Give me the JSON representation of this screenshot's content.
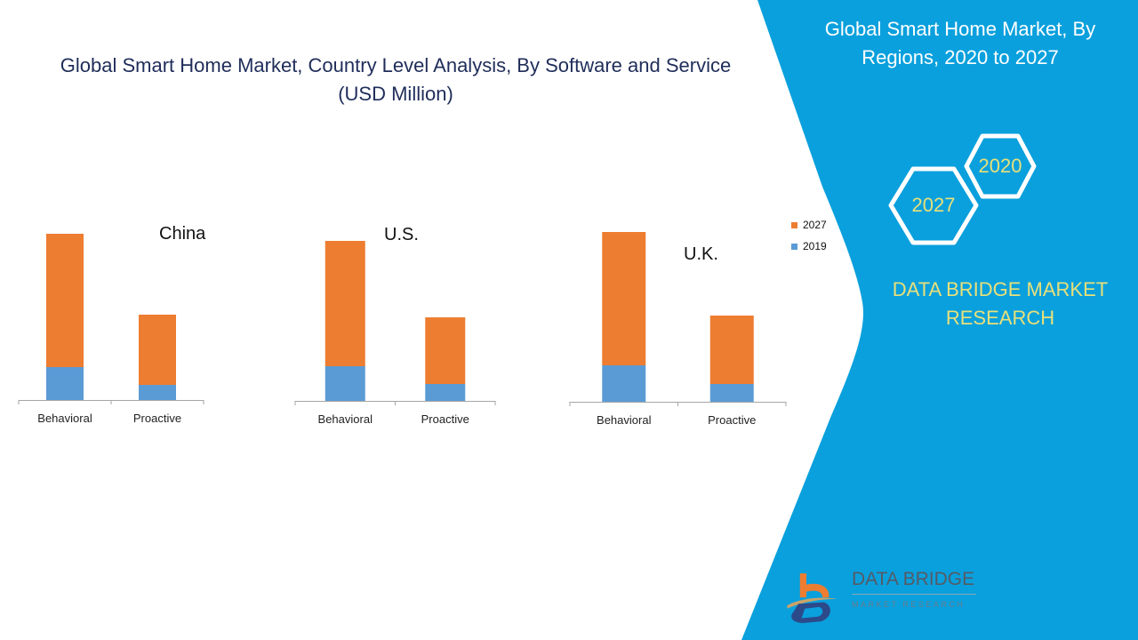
{
  "main_title": {
    "line1": "Global Smart Home Market, Country Level Analysis, By Software and Service",
    "line2": "(USD Million)"
  },
  "right_panel": {
    "title_line1": "Global Smart Home Market, By",
    "title_line2": "Regions, 2020 to 2027",
    "hex_2020": "2020",
    "hex_2027": "2027",
    "brand_line1": "DATA BRIDGE MARKET",
    "brand_line2": "RESEARCH",
    "logo_name": "DATA BRIDGE",
    "logo_sub": "MARKET RESEARCH"
  },
  "colors": {
    "series_2027": "#ed7d31",
    "series_2019": "#5b9bd5",
    "panel_blue": "#0aa0dd",
    "title_navy": "#1f2d5a",
    "brand_yellow": "#e8e07a"
  },
  "chart_data": [
    {
      "type": "bar",
      "stacked": true,
      "title": "China",
      "categories": [
        "Behavioral",
        "Proactive"
      ],
      "series": [
        {
          "name": "2019",
          "values": [
            37,
            17
          ]
        },
        {
          "name": "2027",
          "values": [
            150,
            79
          ]
        }
      ],
      "ylim": [
        0,
        200
      ],
      "grid": false,
      "legend": "right"
    },
    {
      "type": "bar",
      "stacked": true,
      "title": "U.S.",
      "categories": [
        "Behavioral",
        "Proactive"
      ],
      "series": [
        {
          "name": "2019",
          "values": [
            39,
            19
          ]
        },
        {
          "name": "2027",
          "values": [
            141,
            75
          ]
        }
      ],
      "ylim": [
        0,
        200
      ],
      "grid": false,
      "legend": "right"
    },
    {
      "type": "bar",
      "stacked": true,
      "title": "U.K.",
      "categories": [
        "Behavioral",
        "Proactive"
      ],
      "series": [
        {
          "name": "2019",
          "values": [
            41,
            20
          ]
        },
        {
          "name": "2027",
          "values": [
            150,
            77
          ]
        }
      ],
      "ylim": [
        0,
        200
      ],
      "grid": false,
      "legend": "right"
    }
  ],
  "legend": [
    {
      "label": "2027",
      "series": "2027"
    },
    {
      "label": "2019",
      "series": "2019"
    }
  ]
}
